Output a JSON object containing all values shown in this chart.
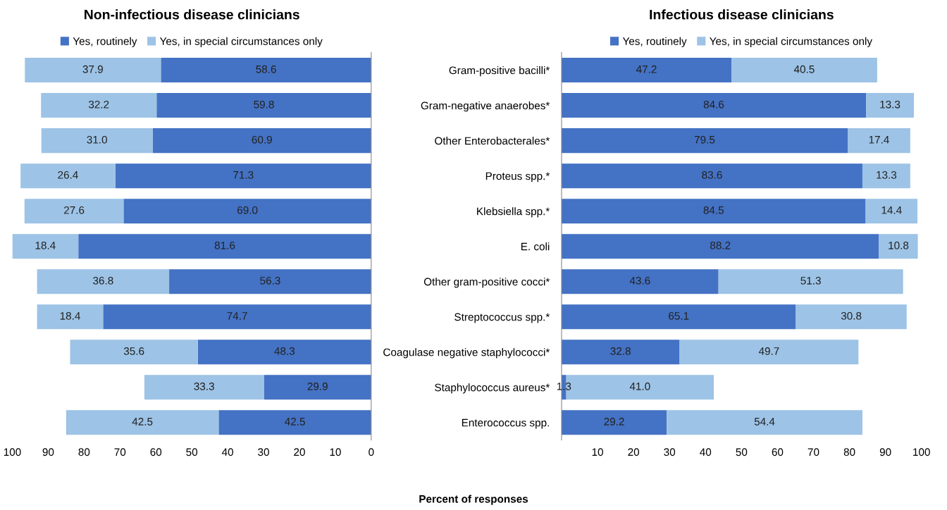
{
  "chart_data": [
    {
      "type": "bar",
      "orientation": "horizontal",
      "stacked": true,
      "title": "Non-infectious disease clinicians",
      "categories": [
        null,
        null,
        null,
        null,
        null,
        null,
        null,
        null,
        null,
        null,
        null
      ],
      "xlim": [
        100,
        0
      ],
      "xticks": [
        100,
        90,
        80,
        70,
        60,
        50,
        40,
        30,
        20,
        10,
        0
      ],
      "tick_labels": "x",
      "legend": "top",
      "grid": false,
      "series": [
        {
          "name": "Yes, routinely",
          "color": "#4472c4",
          "values": [
            58.6,
            59.8,
            60.9,
            71.3,
            69.0,
            81.6,
            56.3,
            74.7,
            48.3,
            29.9,
            42.5
          ],
          "value_labels": [
            "58.6",
            "59.8",
            "60.9",
            "71.3",
            "69.0",
            "81.6",
            "56.3",
            "74.7",
            "48.3",
            "29.9",
            "42.5"
          ]
        },
        {
          "name": "Yes, in special circumstances only",
          "color": "#9dc3e6",
          "values": [
            37.9,
            32.2,
            31.0,
            26.4,
            27.6,
            18.4,
            36.8,
            18.4,
            35.6,
            33.3,
            42.5
          ],
          "value_labels": [
            "37.9",
            "32.2",
            "31.0",
            "26.4",
            "27.6",
            "18.4",
            "36.8",
            "18.4",
            "35.6",
            "33.3",
            "42.5"
          ]
        }
      ]
    },
    {
      "type": "bar",
      "orientation": "horizontal",
      "stacked": true,
      "title": "Infectious disease clinicians",
      "xlabel": "Percent of responses",
      "categories": [
        "Gram-positive bacilli*",
        "Gram-negative anaerobes*",
        "Other Enterobacterales*",
        "Proteus spp.*",
        "Klebsiella spp.*",
        "E. coli",
        "Other gram-positive cocci*",
        "Streptococcus spp.*",
        "Coagulase negative staphylococci*",
        "Staphylococcus aureus*",
        "Enterococcus spp."
      ],
      "xlim": [
        0,
        100
      ],
      "xticks": [
        10,
        20,
        30,
        40,
        50,
        60,
        70,
        80,
        90,
        100
      ],
      "legend": "top",
      "grid": false,
      "series": [
        {
          "name": "Yes, routinely",
          "color": "#4472c4",
          "values": [
            47.2,
            84.6,
            79.5,
            83.6,
            84.5,
            88.2,
            43.6,
            65.1,
            32.8,
            1.3,
            29.2
          ],
          "value_labels": [
            "47.2",
            "84.6",
            "79.5",
            "83.6",
            "84.5",
            "88.2",
            "43.6",
            "65.1",
            "32.8",
            "1.3",
            "29.2"
          ]
        },
        {
          "name": "Yes, in special circumstances only",
          "color": "#9dc3e6",
          "values": [
            40.5,
            13.3,
            17.4,
            13.3,
            14.4,
            10.8,
            51.3,
            30.8,
            49.7,
            41.0,
            54.4
          ],
          "value_labels": [
            "40.5",
            "13.3",
            "17.4",
            "13.3",
            "14.4",
            "10.8",
            "51.3",
            "30.8",
            "49.7",
            "41.0",
            "54.4"
          ]
        }
      ]
    }
  ]
}
